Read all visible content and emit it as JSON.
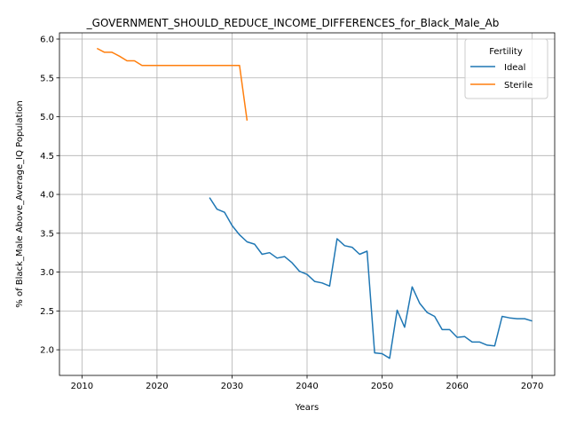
{
  "chart_data": {
    "type": "line",
    "title": "_GOVERNMENT_SHOULD_REDUCE_INCOME_DIFFERENCES_for_Black_Male_Ab",
    "xlabel": "Years",
    "ylabel": "% of Black_Male Above_Average_IQ Population",
    "xlim": [
      2007,
      2073
    ],
    "ylim": [
      1.67,
      6.08
    ],
    "xticks": [
      2010,
      2020,
      2030,
      2040,
      2050,
      2060,
      2070
    ],
    "yticks": [
      2.0,
      2.5,
      3.0,
      3.5,
      4.0,
      4.5,
      5.0,
      5.5,
      6.0
    ],
    "grid": true,
    "legend": {
      "title": "Fertility",
      "placement": "top-right"
    },
    "series": [
      {
        "name": "Ideal",
        "color": "#1f77b4",
        "x": [
          2027,
          2028,
          2029,
          2030,
          2031,
          2032,
          2033,
          2034,
          2035,
          2036,
          2037,
          2038,
          2039,
          2040,
          2041,
          2042,
          2043,
          2044,
          2045,
          2046,
          2047,
          2048,
          2049,
          2050,
          2051,
          2052,
          2053,
          2054,
          2055,
          2056,
          2057,
          2058,
          2059,
          2060,
          2061,
          2062,
          2063,
          2064,
          2065,
          2066,
          2067,
          2068,
          2069,
          2070
        ],
        "y": [
          3.96,
          3.81,
          3.77,
          3.6,
          3.48,
          3.39,
          3.36,
          3.23,
          3.25,
          3.18,
          3.2,
          3.12,
          3.01,
          2.97,
          2.88,
          2.86,
          2.82,
          3.43,
          3.34,
          3.32,
          3.23,
          3.27,
          1.96,
          1.95,
          1.89,
          2.51,
          2.29,
          2.81,
          2.6,
          2.48,
          2.43,
          2.26,
          2.26,
          2.16,
          2.17,
          2.1,
          2.1,
          2.06,
          2.05,
          2.43,
          2.41,
          2.4,
          2.4,
          2.37
        ]
      },
      {
        "name": "Sterile",
        "color": "#ff7f0e",
        "x": [
          2012,
          2013,
          2014,
          2015,
          2016,
          2017,
          2018,
          2019,
          2020,
          2021,
          2022,
          2023,
          2024,
          2025,
          2026,
          2027,
          2028,
          2029,
          2030,
          2031,
          2032
        ],
        "y": [
          5.88,
          5.83,
          5.83,
          5.78,
          5.72,
          5.72,
          5.66,
          5.66,
          5.66,
          5.66,
          5.66,
          5.66,
          5.66,
          5.66,
          5.66,
          5.66,
          5.66,
          5.66,
          5.66,
          5.66,
          4.95
        ]
      }
    ]
  }
}
